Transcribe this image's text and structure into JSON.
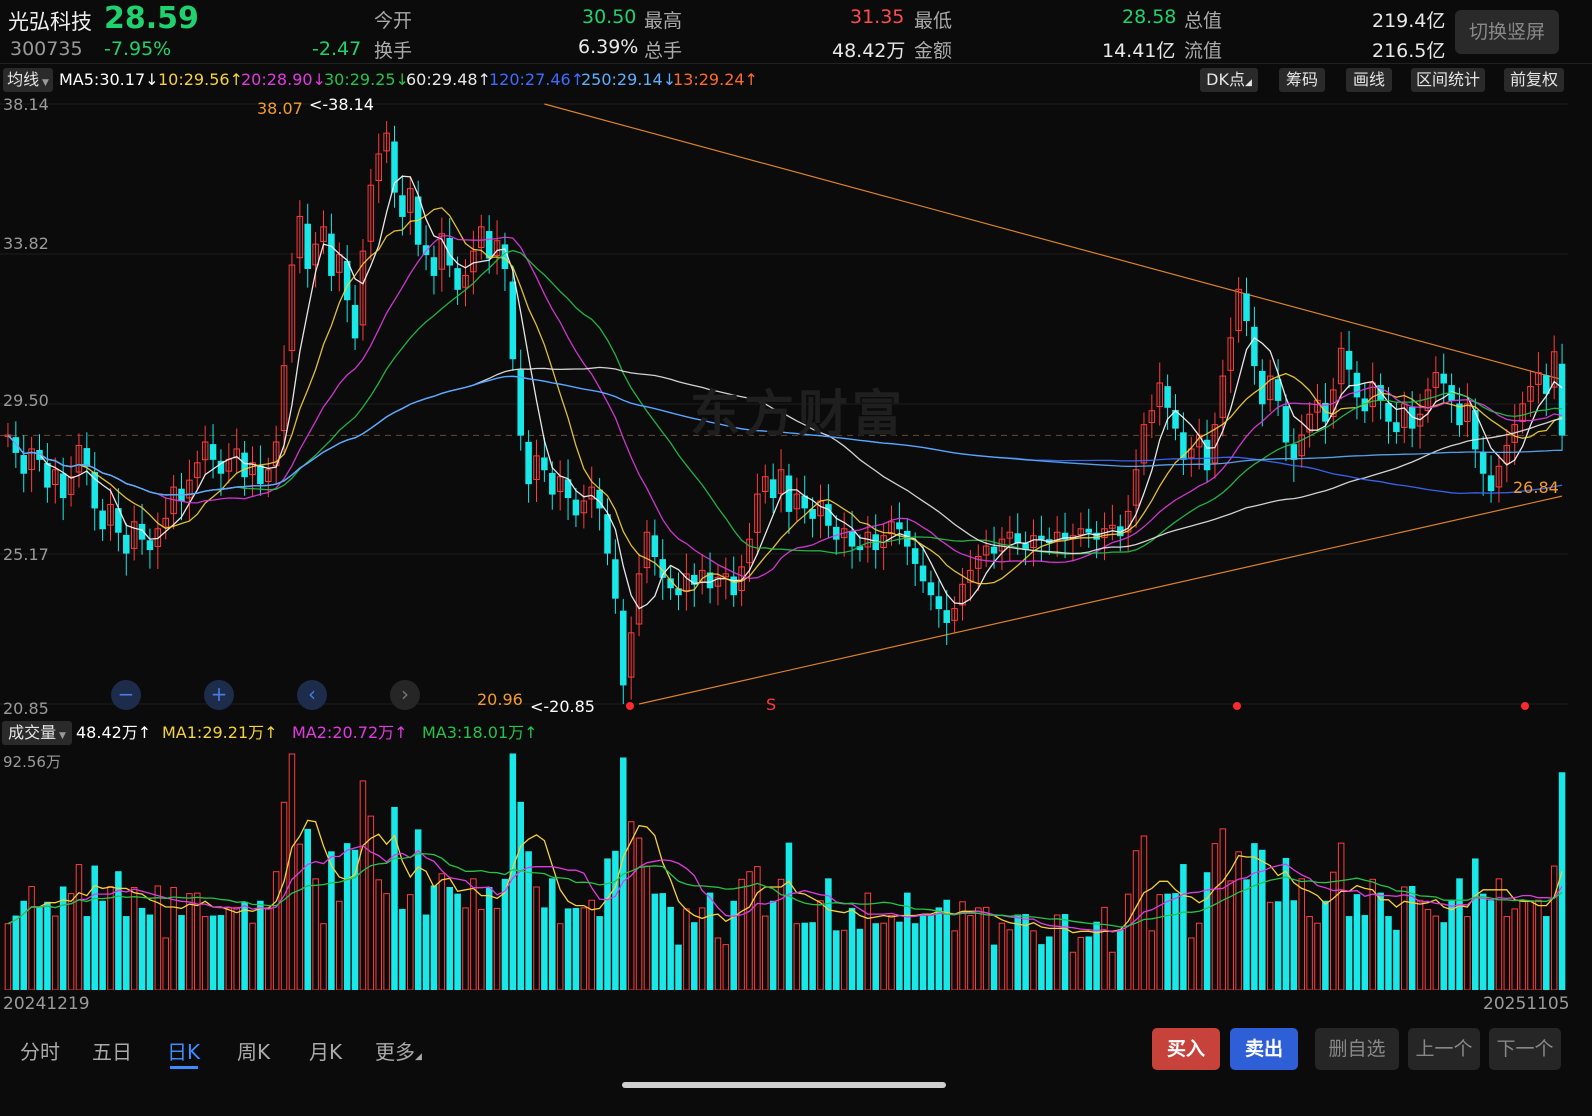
{
  "header": {
    "stock_name": "光弘科技",
    "price": "28.59",
    "code": "300735",
    "change_pct": "-7.95%",
    "change_abs": "-2.47",
    "open_label": "今开",
    "open_value": "30.50",
    "high_label": "最高",
    "high_value": "31.35",
    "low_label": "最低",
    "low_value": "28.58",
    "mcap_label": "总值",
    "mcap_value": "219.4亿",
    "turnover_label": "换手",
    "turnover_value": "6.39%",
    "vol_label": "总手",
    "vol_value": "48.42万",
    "amount_label": "金额",
    "amount_value": "14.41亿",
    "float_label": "流值",
    "float_value": "216.5亿",
    "toggle_label": "切换竖屏"
  },
  "ma_bar": {
    "selector": "均线",
    "items": [
      {
        "text": "MA5:30.17↓",
        "color": "#ffffff"
      },
      {
        "text": "10:29.56↑",
        "color": "#f5d13b"
      },
      {
        "text": "20:28.90↓",
        "color": "#e03be0"
      },
      {
        "text": "30:29.25↓",
        "color": "#26c24a"
      },
      {
        "text": "60:29.48↑",
        "color": "#e8e8e8"
      },
      {
        "text": "120:27.46↑",
        "color": "#3d6bff"
      },
      {
        "text": "250:29.14↓",
        "color": "#5bb0ff"
      },
      {
        "text": "13:29.24↑",
        "color": "#ff6a2a"
      }
    ],
    "tools": [
      "DK点",
      "筹码",
      "画线",
      "区间统计",
      "前复权"
    ]
  },
  "price_axis": [
    "38.14",
    "33.82",
    "29.50",
    "25.17",
    "20.85"
  ],
  "annotations": {
    "high_mark": "38.07",
    "high_arrow": "<-38.14",
    "low_mark": "20.96",
    "low_arrow": "<-20.85",
    "support": "26.84",
    "s_mark": "S",
    "watermark": "东方财富"
  },
  "volume_bar": {
    "selector": "成交量",
    "items": [
      {
        "text": "48.42万↑",
        "color": "#ffffff"
      },
      {
        "text": "MA1:29.21万↑",
        "color": "#f5d13b"
      },
      {
        "text": "MA2:20.72万↑",
        "color": "#e03be0"
      },
      {
        "text": "MA3:18.01万↑",
        "color": "#26c24a"
      }
    ],
    "max_label": "92.56万"
  },
  "dates": {
    "start": "20241219",
    "end": "20251105"
  },
  "tabs": [
    "分时",
    "五日",
    "日K",
    "周K",
    "月K",
    "更多"
  ],
  "active_tab": "日K",
  "actions": {
    "buy": "买入",
    "sell": "卖出",
    "remove": "删自选",
    "prev": "上一个",
    "next": "下一个"
  },
  "colors": {
    "up": "#ff3b3b",
    "down": "#18e8e8",
    "buy_bg": "#c8423c",
    "sell_bg": "#2f5fd6"
  },
  "chart_data": {
    "type": "candlestick",
    "ylim": [
      20.85,
      38.14
    ],
    "closes": [
      28.6,
      28.1,
      27.5,
      28.2,
      27.9,
      27.1,
      27.6,
      26.8,
      27.4,
      28.3,
      27.7,
      26.5,
      25.9,
      26.6,
      25.8,
      25.2,
      26.1,
      25.6,
      25.3,
      25.9,
      26.2,
      27.1,
      26.7,
      27.3,
      27.8,
      28.4,
      27.9,
      27.5,
      27.9,
      28.2,
      27.4,
      27.8,
      27.2,
      27.6,
      28.4,
      30.6,
      33.5,
      34.9,
      33.4,
      34.1,
      34.6,
      33.2,
      33.8,
      32.5,
      31.4,
      33.9,
      35.8,
      36.7,
      37.3,
      35.6,
      34.9,
      35.7,
      34.1,
      33.8,
      33.2,
      34.4,
      33.5,
      32.8,
      33.2,
      33.9,
      34.6,
      33.7,
      34.2,
      33.4,
      30.8,
      28.6,
      27.2,
      28.0,
      27.6,
      26.9,
      27.4,
      26.8,
      26.3,
      26.7,
      27.1,
      26.5,
      25.2,
      23.9,
      21.4,
      22.9,
      24.6,
      25.8,
      25.1,
      24.5,
      24.2,
      24.0,
      24.6,
      24.3,
      24.7,
      24.2,
      24.5,
      24.6,
      24.0,
      24.8,
      25.6,
      26.9,
      27.4,
      26.8,
      27.6,
      26.4,
      26.9,
      26.5,
      26.2,
      26.7,
      26.0,
      25.6,
      25.9,
      25.4,
      25.3,
      25.8,
      25.3,
      25.7,
      26.1,
      25.9,
      25.4,
      24.9,
      24.4,
      24.0,
      23.6,
      23.2,
      23.6,
      24.3,
      24.7,
      25.1,
      25.4,
      25.2,
      25.6,
      25.8,
      25.5,
      25.3,
      25.7,
      25.6,
      25.5,
      25.8,
      25.6,
      25.7,
      25.9,
      25.8,
      25.6,
      25.9,
      26.0,
      25.7,
      26.4,
      27.6,
      28.9,
      29.3,
      30.1,
      29.4,
      28.8,
      27.9,
      28.2,
      28.6,
      27.6,
      28.9,
      30.3,
      31.4,
      32.8,
      31.9,
      30.6,
      29.5,
      30.3,
      29.6,
      28.4,
      27.9,
      28.6,
      29.2,
      29.6,
      29.0,
      29.9,
      31.1,
      30.5,
      29.7,
      29.3,
      30.1,
      29.6,
      29.0,
      28.7,
      29.5,
      28.8,
      29.2,
      29.9,
      30.4,
      30.1,
      29.6,
      28.9,
      29.5,
      28.2,
      27.5,
      27.0,
      27.7,
      28.3,
      28.9,
      29.5,
      30.0,
      30.4,
      29.8,
      31.0,
      28.6
    ],
    "volume_max": "92.56万"
  }
}
